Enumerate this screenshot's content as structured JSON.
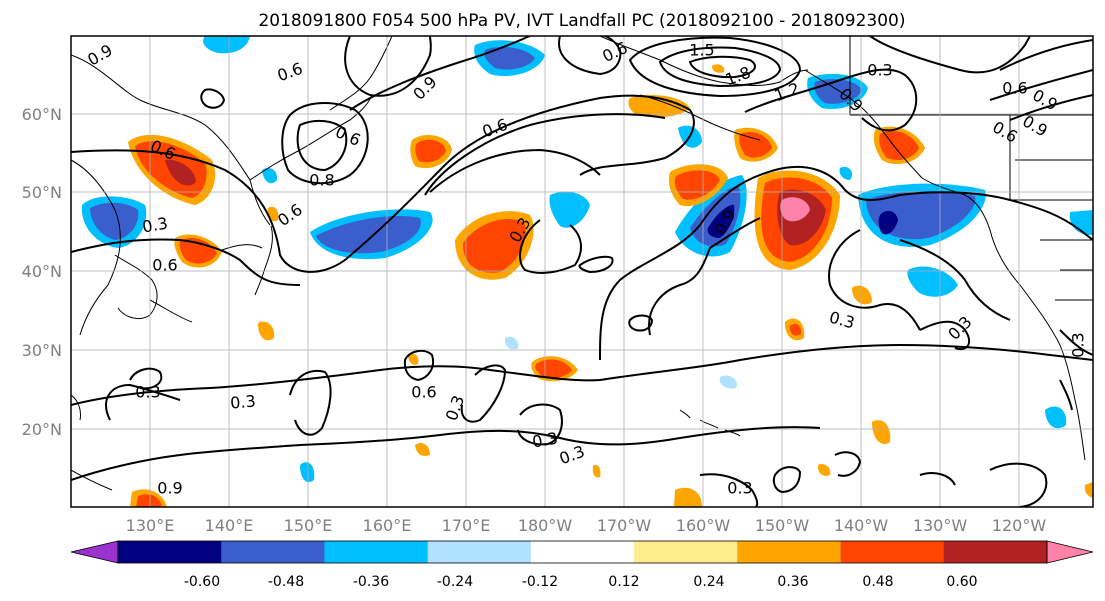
{
  "title": "2018091800 F054 500 hPa PV, IVT Landfall PC (2018092100 - 2018092300)",
  "lat_labels": [
    "60°N",
    "50°N",
    "40°N",
    "30°N",
    "20°N"
  ],
  "lon_labels": [
    "130°E",
    "140°E",
    "150°E",
    "160°E",
    "170°E",
    "180°W",
    "170°W",
    "160°W",
    "150°W",
    "140°W",
    "130°W",
    "120°W"
  ],
  "colorbar": {
    "colors": [
      "#9933cc",
      "#000080",
      "#3a5fcd",
      "#00bfff",
      "#b0e2ff",
      "#ffffff",
      "#ffec8b",
      "#ffa500",
      "#ff4500",
      "#b22222",
      "#ff82ab"
    ],
    "tick_labels": [
      "-0.60",
      "-0.48",
      "-0.36",
      "-0.24",
      "-0.12",
      "0.12",
      "0.24",
      "0.36",
      "0.48",
      "0.60"
    ]
  },
  "contour_labels": [
    "0.9",
    "0.6",
    "0.6",
    "1.5",
    "1.8",
    "0.3",
    "0.6",
    "0.9",
    "0.9",
    "0.6",
    "0.6",
    "0.9",
    "0.6",
    "0.8",
    "1.2",
    "0.9",
    "0.6",
    "0.3",
    "0.6",
    "0.3",
    "0.9",
    "0.3",
    "0.3",
    "0.3",
    "0.3",
    "0.3",
    "0.6",
    "0.3",
    "0.3",
    "0.3",
    "0.3",
    "0.6",
    "0.9"
  ]
}
